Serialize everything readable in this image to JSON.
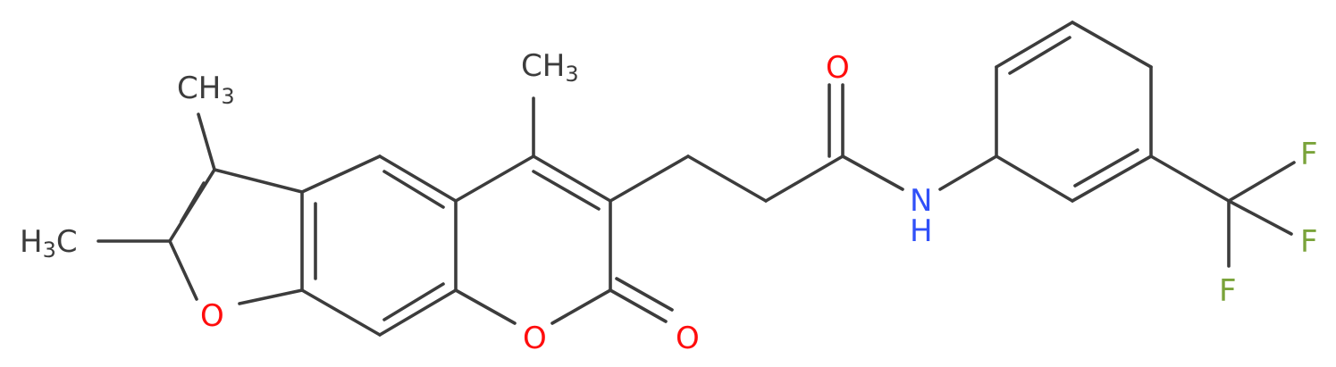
{
  "labels": {
    "methyl_3": "CH3",
    "methyl_2": "H3C",
    "methyl_4": "CH3",
    "o_furan": "O",
    "o_pyran": "O",
    "o_lactone": "O",
    "o_amide": "O",
    "n": "N",
    "h": "H",
    "f1": "F",
    "f2": "F",
    "f3": "F",
    "ch": "CH",
    "hc": "H",
    "c_sub": "C",
    "three": "3"
  },
  "colors": {
    "carbon": "#3c3c3c",
    "oxygen": "#ff0d0d",
    "nitrogen": "#3050f8",
    "fluorine": "#7aa33a"
  }
}
